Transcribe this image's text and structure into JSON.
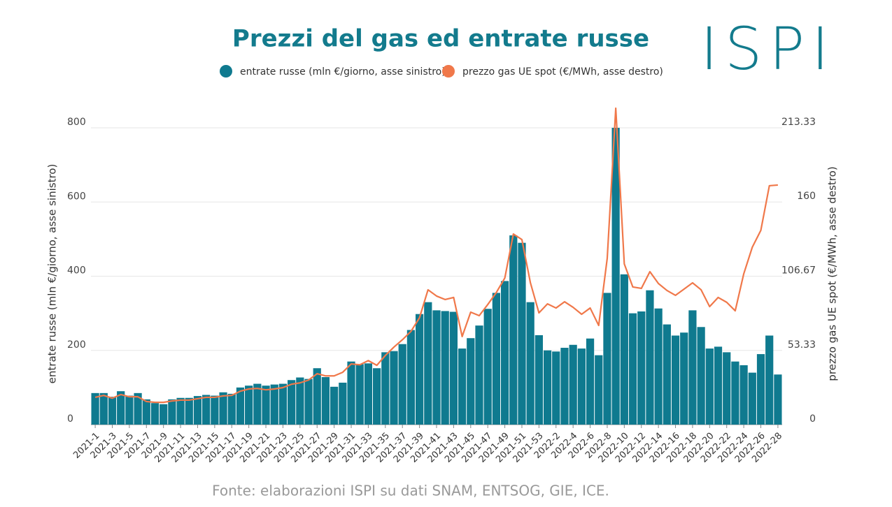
{
  "chart_data": {
    "type": "bar",
    "title": "Prezzi del gas ed entrate russe",
    "logo": "ISPI",
    "source": "Fonte: elaborazioni ISPI su dati SNAM, ENTSOG, GIE, ICE.",
    "ylabel": "entrate russe (mln €/giorno, asse sinistro)",
    "y2label": "prezzo gas UE spot (€/MWh, asse destro)",
    "legend": "top",
    "grid": true,
    "categories": [
      "2021-1",
      null,
      "2021-3",
      null,
      "2021-5",
      null,
      "2021-7",
      null,
      "2021-9",
      null,
      "2021-11",
      null,
      "2021-13",
      null,
      "2021-15",
      null,
      "2021-17",
      null,
      "2021-19",
      null,
      "2021-21",
      null,
      "2021-23",
      null,
      "2021-25",
      null,
      "2021-27",
      null,
      "2021-29",
      null,
      "2021-31",
      null,
      "2021-33",
      null,
      "2021-35",
      null,
      "2021-37",
      null,
      "2021-39",
      null,
      "2021-41",
      null,
      "2021-43",
      null,
      "2021-45",
      null,
      "2021-47",
      null,
      "2021-49",
      null,
      "2021-51",
      null,
      "2021-53",
      null,
      "2022-2",
      null,
      "2022-4",
      null,
      "2022-6",
      null,
      "2022-8",
      null,
      "2022-10",
      null,
      "2022-12",
      null,
      "2022-14",
      null,
      "2022-16",
      null,
      "2022-18",
      null,
      "2022-20",
      null,
      "2022-22",
      null,
      "2022-24",
      null,
      "2022-26",
      null,
      "2022-28"
    ],
    "series": [
      {
        "name": "entrate russe (mln €/giorno, asse sinistro)",
        "type": "bar",
        "color": "#0f7a8f",
        "values": [
          85,
          85,
          75,
          90,
          78,
          85,
          68,
          58,
          55,
          68,
          72,
          72,
          77,
          80,
          78,
          87,
          83,
          100,
          105,
          110,
          105,
          108,
          110,
          120,
          127,
          123,
          152,
          128,
          102,
          113,
          170,
          163,
          165,
          152,
          195,
          198,
          217,
          255,
          298,
          330,
          308,
          306,
          304,
          205,
          233,
          267,
          312,
          355,
          387,
          510,
          490,
          330,
          241,
          200,
          197,
          207,
          215,
          205,
          232,
          187,
          355,
          800,
          405,
          300,
          305,
          362,
          313,
          270,
          240,
          248,
          308,
          263,
          205,
          210,
          195,
          170,
          160,
          140,
          190,
          240,
          135
        ]
      },
      {
        "name": "prezzo gas UE spot (€/MWh, asse destro)",
        "type": "line",
        "axis": "y2",
        "color": "#f0784a",
        "values": [
          19.6,
          21,
          19,
          21.6,
          20,
          20,
          16.6,
          16,
          16,
          17,
          17.6,
          17.6,
          18.6,
          19.6,
          19.6,
          20.6,
          21,
          24,
          25.6,
          26,
          25,
          25.6,
          26.6,
          29,
          30,
          32,
          36.6,
          35,
          35,
          37.6,
          43.6,
          43,
          46,
          42.6,
          49.7,
          55.7,
          61,
          67,
          76.8,
          96.9,
          92.4,
          89.9,
          91.4,
          63.3,
          80.8,
          78.3,
          86.3,
          94.9,
          105.4,
          137,
          133,
          101.9,
          80.3,
          86.8,
          83.8,
          88.3,
          84.3,
          79.3,
          83.8,
          71.3,
          119.5,
          227.4,
          115.5,
          98.9,
          97.9,
          109.9,
          101.4,
          96.4,
          92.9,
          97.4,
          101.9,
          96.9,
          84.8,
          91.4,
          87.9,
          81.8,
          108.4,
          127.5,
          139.6,
          171.7,
          172.2
        ]
      }
    ],
    "ylim": [
      0,
      860
    ],
    "yticks": [
      0,
      200,
      400,
      600,
      800
    ],
    "y2lim": [
      0,
      229.33
    ],
    "y2ticks": [
      0,
      53.33,
      106.67,
      160,
      213.33
    ]
  }
}
